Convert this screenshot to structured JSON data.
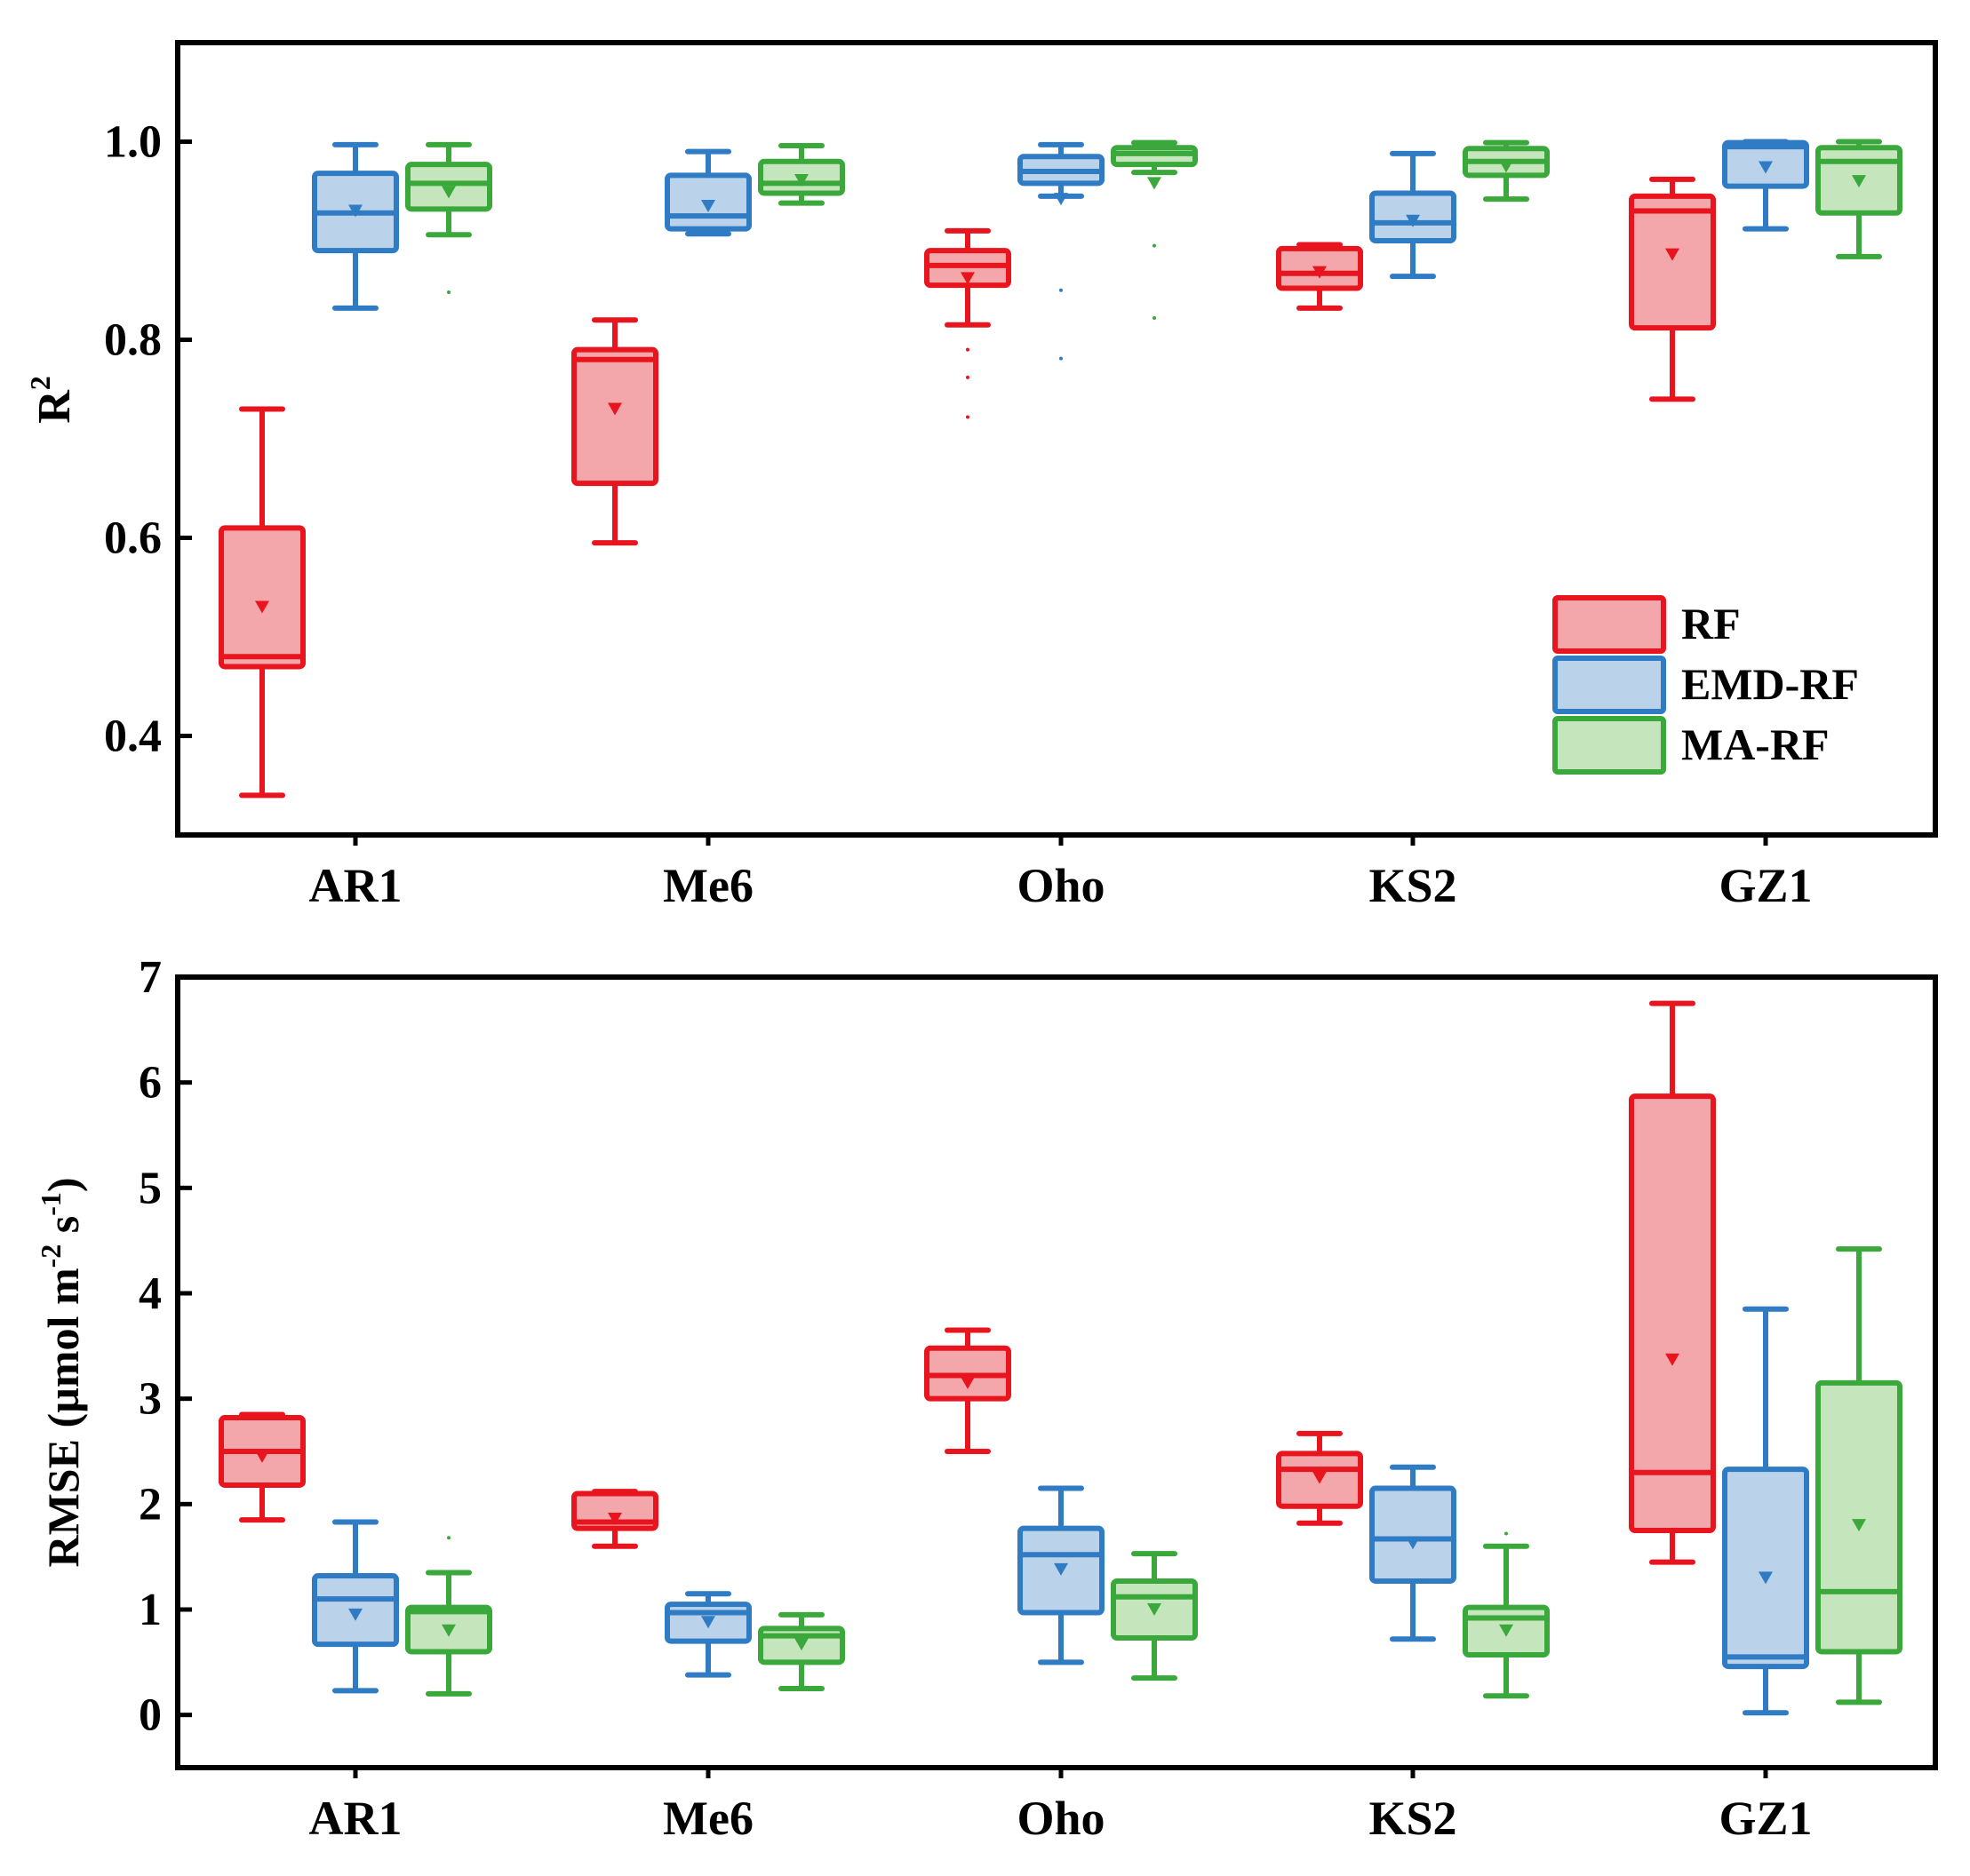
{
  "colors": {
    "RF": {
      "stroke": "#e8141e",
      "fill": "#f4a7ab"
    },
    "EMD-RF": {
      "stroke": "#2f7bc4",
      "fill": "#bad3ea"
    },
    "MA-RF": {
      "stroke": "#3aa83a",
      "fill": "#c5e6bd"
    }
  },
  "chart_data": [
    {
      "type": "box",
      "ylabel_main": "R",
      "ylabel_sup": "2",
      "ylim": [
        0.3,
        1.1
      ],
      "yticks": [
        0.4,
        0.6,
        0.8,
        1.0
      ],
      "ytick_labels": [
        "0.4",
        "0.6",
        "0.8",
        "1.0"
      ],
      "categories": [
        "AR1",
        "Me6",
        "Oho",
        "KS2",
        "GZ1"
      ],
      "legend": {
        "position": "right-lower",
        "entries": [
          "RF",
          "EMD-RF",
          "MA-RF"
        ]
      },
      "series": [
        {
          "name": "RF",
          "boxes": [
            {
              "min": 0.34,
              "q1": 0.47,
              "median": 0.48,
              "q3": 0.61,
              "max": 0.73,
              "mean": 0.53,
              "outliers": []
            },
            {
              "min": 0.595,
              "q1": 0.655,
              "median": 0.78,
              "q3": 0.79,
              "max": 0.82,
              "mean": 0.73,
              "outliers": []
            },
            {
              "min": 0.815,
              "q1": 0.855,
              "median": 0.875,
              "q3": 0.89,
              "max": 0.91,
              "mean": 0.862,
              "outliers": [
                0.79,
                0.762,
                0.722
              ]
            },
            {
              "min": 0.832,
              "q1": 0.852,
              "median": 0.867,
              "q3": 0.892,
              "max": 0.896,
              "mean": 0.868,
              "outliers": []
            },
            {
              "min": 0.74,
              "q1": 0.812,
              "median": 0.93,
              "q3": 0.945,
              "max": 0.962,
              "mean": 0.886,
              "outliers": []
            }
          ]
        },
        {
          "name": "EMD-RF",
          "boxes": [
            {
              "min": 0.832,
              "q1": 0.89,
              "median": 0.928,
              "q3": 0.968,
              "max": 0.997,
              "mean": 0.93,
              "outliers": []
            },
            {
              "min": 0.907,
              "q1": 0.912,
              "median": 0.925,
              "q3": 0.966,
              "max": 0.99,
              "mean": 0.935,
              "outliers": []
            },
            {
              "min": 0.945,
              "q1": 0.958,
              "median": 0.97,
              "q3": 0.985,
              "max": 0.997,
              "mean": 0.942,
              "outliers": [
                0.85,
                0.781
              ]
            },
            {
              "min": 0.864,
              "q1": 0.9,
              "median": 0.918,
              "q3": 0.948,
              "max": 0.988,
              "mean": 0.92,
              "outliers": []
            },
            {
              "min": 0.912,
              "q1": 0.955,
              "median": 0.995,
              "q3": 0.999,
              "max": 1.0,
              "mean": 0.974,
              "outliers": []
            }
          ]
        },
        {
          "name": "MA-RF",
          "boxes": [
            {
              "min": 0.906,
              "q1": 0.932,
              "median": 0.958,
              "q3": 0.977,
              "max": 0.997,
              "mean": 0.949,
              "outliers": [
                0.848
              ]
            },
            {
              "min": 0.938,
              "q1": 0.948,
              "median": 0.958,
              "q3": 0.98,
              "max": 0.996,
              "mean": 0.961,
              "outliers": []
            },
            {
              "min": 0.969,
              "q1": 0.977,
              "median": 0.988,
              "q3": 0.994,
              "max": 0.999,
              "mean": 0.958,
              "outliers": [
                0.895,
                0.822
              ]
            },
            {
              "min": 0.942,
              "q1": 0.966,
              "median": 0.98,
              "q3": 0.993,
              "max": 0.999,
              "mean": 0.975,
              "outliers": []
            },
            {
              "min": 0.884,
              "q1": 0.928,
              "median": 0.98,
              "q3": 0.994,
              "max": 1.0,
              "mean": 0.96,
              "outliers": []
            }
          ]
        }
      ]
    },
    {
      "type": "box",
      "ylabel_main": "RMSE (µmol m",
      "ylabel_sup1": "-2",
      "ylabel_mid": " s",
      "ylabel_sup2": "-1",
      "ylabel_end": ")",
      "ylim": [
        -0.5,
        7
      ],
      "yticks": [
        0,
        1,
        2,
        3,
        4,
        5,
        6,
        7
      ],
      "ytick_labels": [
        "0",
        "1",
        "2",
        "3",
        "4",
        "5",
        "6",
        "7"
      ],
      "categories": [
        "AR1",
        "Me6",
        "Oho",
        "KS2",
        "GZ1"
      ],
      "series": [
        {
          "name": "RF",
          "boxes": [
            {
              "min": 1.85,
              "q1": 2.18,
              "median": 2.5,
              "q3": 2.82,
              "max": 2.85,
              "mean": 2.45,
              "outliers": []
            },
            {
              "min": 1.6,
              "q1": 1.77,
              "median": 1.83,
              "q3": 2.1,
              "max": 2.12,
              "mean": 1.86,
              "outliers": []
            },
            {
              "min": 2.5,
              "q1": 3.0,
              "median": 3.22,
              "q3": 3.48,
              "max": 3.65,
              "mean": 3.15,
              "outliers": []
            },
            {
              "min": 1.82,
              "q1": 1.98,
              "median": 2.33,
              "q3": 2.48,
              "max": 2.67,
              "mean": 2.25,
              "outliers": []
            },
            {
              "min": 1.45,
              "q1": 1.75,
              "median": 2.3,
              "q3": 5.87,
              "max": 6.75,
              "mean": 3.37,
              "outliers": []
            }
          ]
        },
        {
          "name": "EMD-RF",
          "boxes": [
            {
              "min": 0.23,
              "q1": 0.67,
              "median": 1.1,
              "q3": 1.32,
              "max": 1.83,
              "mean": 0.95,
              "outliers": []
            },
            {
              "min": 0.38,
              "q1": 0.7,
              "median": 0.97,
              "q3": 1.05,
              "max": 1.15,
              "mean": 0.88,
              "outliers": []
            },
            {
              "min": 0.5,
              "q1": 0.97,
              "median": 1.52,
              "q3": 1.77,
              "max": 2.15,
              "mean": 1.38,
              "outliers": []
            },
            {
              "min": 0.72,
              "q1": 1.27,
              "median": 1.67,
              "q3": 2.15,
              "max": 2.35,
              "mean": 1.63,
              "outliers": []
            },
            {
              "min": 0.02,
              "q1": 0.46,
              "median": 0.55,
              "q3": 2.33,
              "max": 3.85,
              "mean": 1.3,
              "outliers": []
            }
          ]
        },
        {
          "name": "MA-RF",
          "boxes": [
            {
              "min": 0.2,
              "q1": 0.6,
              "median": 0.98,
              "q3": 1.02,
              "max": 1.35,
              "mean": 0.8,
              "outliers": [
                1.68
              ]
            },
            {
              "min": 0.25,
              "q1": 0.5,
              "median": 0.75,
              "q3": 0.82,
              "max": 0.95,
              "mean": 0.67,
              "outliers": []
            },
            {
              "min": 0.35,
              "q1": 0.73,
              "median": 1.12,
              "q3": 1.27,
              "max": 1.53,
              "mean": 1.0,
              "outliers": []
            },
            {
              "min": 0.18,
              "q1": 0.57,
              "median": 0.92,
              "q3": 1.02,
              "max": 1.6,
              "mean": 0.8,
              "outliers": [
                1.72
              ]
            },
            {
              "min": 0.12,
              "q1": 0.6,
              "median": 1.17,
              "q3": 3.15,
              "max": 4.42,
              "mean": 1.8,
              "outliers": []
            }
          ]
        }
      ]
    }
  ]
}
